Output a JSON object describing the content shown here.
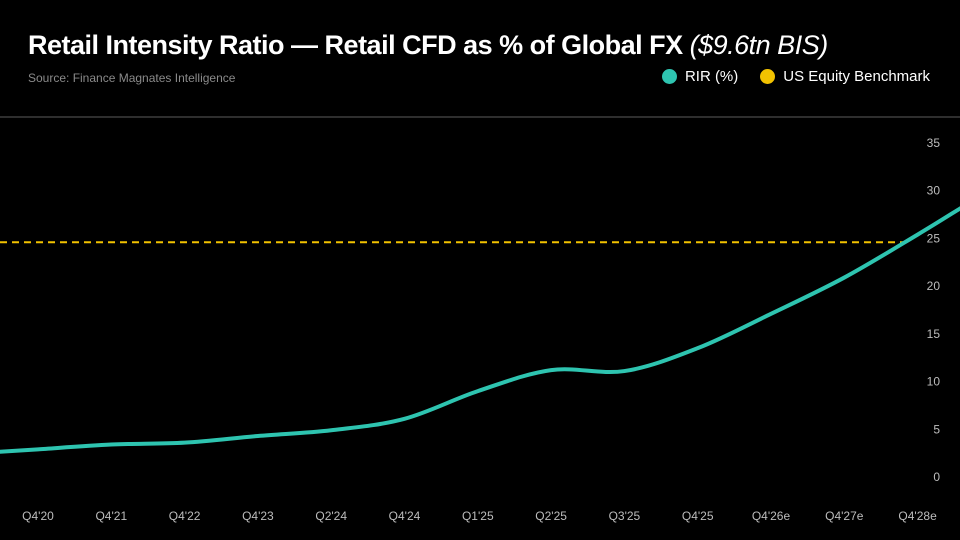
{
  "header": {
    "title_main": "Retail Intensity Ratio — Retail CFD as % of Global FX",
    "title_sub": "($9.6tn BIS)",
    "source": "Source: Finance Magnates Intelligence"
  },
  "colors": {
    "rir": "#2ec4b0",
    "benchmark": "#f2c200",
    "background": "#000000"
  },
  "chart_data": {
    "type": "line",
    "title": "Retail Intensity Ratio — Retail CFD as % of Global FX ($9.6tn BIS)",
    "xlabel": "",
    "ylabel": "",
    "categories": [
      "Q4'20",
      "Q4'21",
      "Q4'22",
      "Q4'23",
      "Q2'24",
      "Q4'24",
      "Q1'25",
      "Q2'25",
      "Q3'25",
      "Q4'25",
      "Q4'26e",
      "Q4'27e",
      "Q4'28e"
    ],
    "series": [
      {
        "name": "RIR (%)",
        "values": [
          2.9,
          3.4,
          3.6,
          4.3,
          4.9,
          6.1,
          9.0,
          11.2,
          11.1,
          13.5,
          17.1,
          20.9,
          25.4
        ]
      },
      {
        "name": "US Equity Benchmark",
        "values": [
          24.6,
          24.6,
          24.6,
          24.6,
          24.6,
          24.6,
          24.6,
          24.6,
          24.6,
          24.6,
          24.6,
          24.6,
          24.6
        ]
      }
    ],
    "yticks": [
      0,
      5,
      10,
      15,
      20,
      25,
      30,
      35
    ],
    "ylim": [
      0,
      35
    ],
    "y_axis_side": "right",
    "grid": false,
    "legend": [
      "RIR (%)",
      "US Equity Benchmark"
    ],
    "legend_placement": "top-right"
  }
}
